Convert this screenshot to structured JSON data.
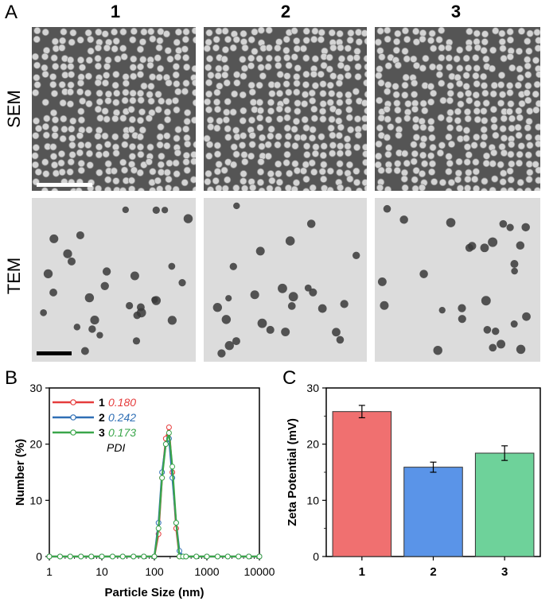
{
  "panels": {
    "a_letter": "A",
    "b_letter": "B",
    "c_letter": "C"
  },
  "panel_a": {
    "columns": [
      "1",
      "2",
      "3"
    ],
    "rows": [
      "SEM",
      "TEM"
    ],
    "colors": {
      "sem_bg": "#555555",
      "sem_particle": "#d4d4d4",
      "tem_bg": "#dcdcdc",
      "tem_particle": "#3a3a3a"
    }
  },
  "chart_data": [
    {
      "type": "line",
      "xscale": "log",
      "xlabel": "Particle Size (nm)",
      "ylabel": "Number (%)",
      "xlim": [
        1,
        10000
      ],
      "ylim": [
        0,
        30
      ],
      "xticks": [
        "1",
        "10",
        "100",
        "1000",
        "10000"
      ],
      "yticks": [
        "0",
        "10",
        "20",
        "30"
      ],
      "legend_position": "top-left",
      "legend_note": "PDI",
      "x": [
        1,
        1.6,
        2.5,
        4,
        6.3,
        10,
        16,
        25,
        40,
        63,
        100,
        120,
        140,
        165,
        190,
        220,
        260,
        300,
        350,
        400,
        630,
        1000,
        1600,
        2500,
        4000,
        6300,
        10000
      ],
      "series": [
        {
          "name": "1",
          "pdi": "0.180",
          "color": "#e53c3c",
          "values": [
            0,
            0,
            0,
            0,
            0,
            0,
            0,
            0,
            0,
            0,
            0,
            4,
            14,
            21,
            23,
            15,
            5,
            0,
            0,
            0,
            0,
            0,
            0,
            0,
            0,
            0,
            0
          ]
        },
        {
          "name": "2",
          "pdi": "0.242",
          "color": "#2f6fb5",
          "values": [
            0,
            0,
            0,
            0,
            0,
            0,
            0,
            0,
            0,
            0,
            0,
            6,
            15,
            20,
            21,
            14,
            6,
            1,
            0,
            0,
            0,
            0,
            0,
            0,
            0,
            0,
            0
          ]
        },
        {
          "name": "3",
          "pdi": "0.173",
          "color": "#3aa64a",
          "values": [
            0,
            0,
            0,
            0,
            0,
            0,
            0,
            0,
            0,
            0,
            0,
            5,
            14,
            20,
            22,
            16,
            6,
            0,
            0,
            0,
            0,
            0,
            0,
            0,
            0,
            0,
            0
          ]
        }
      ]
    },
    {
      "type": "bar",
      "xlabel": "",
      "ylabel": "Zeta Potential (mV)",
      "categories": [
        "1",
        "2",
        "3"
      ],
      "values": [
        25.8,
        15.9,
        18.4
      ],
      "errors": [
        1.1,
        0.9,
        1.3
      ],
      "colors": [
        "#f07070",
        "#5a94e8",
        "#6ed29a"
      ],
      "ylim": [
        0,
        30
      ],
      "yticks": [
        "0",
        "10",
        "20",
        "30"
      ]
    }
  ]
}
